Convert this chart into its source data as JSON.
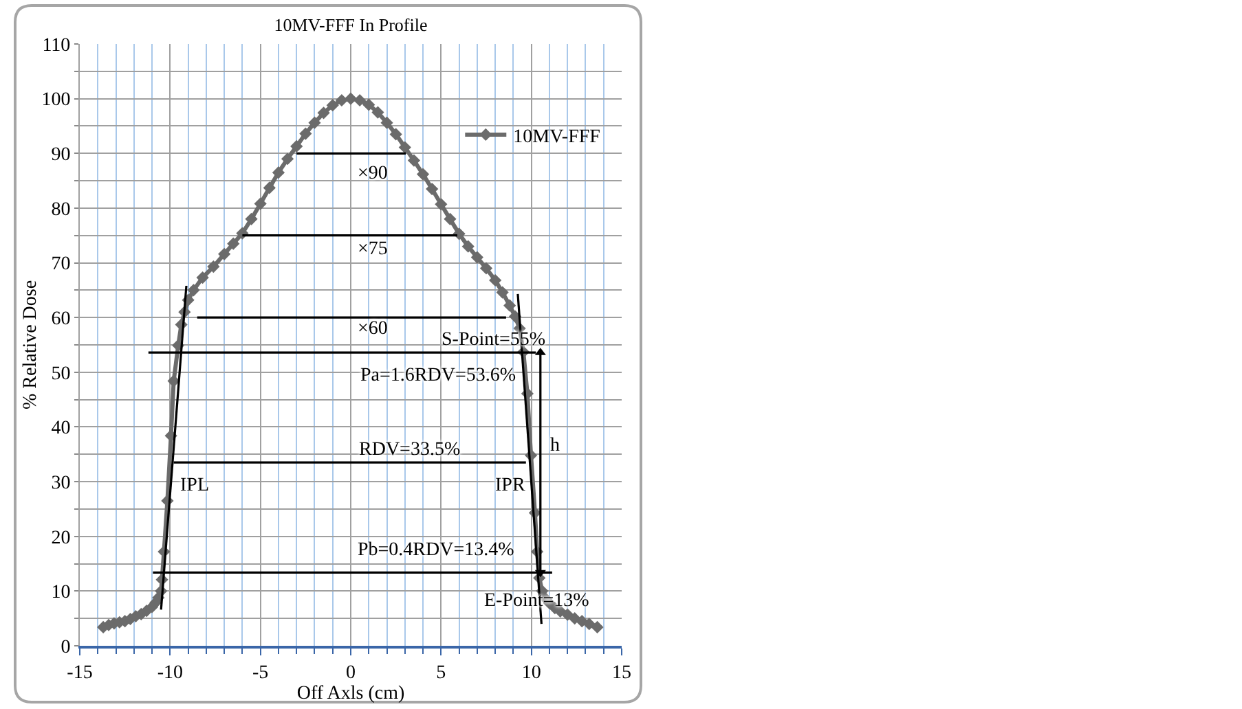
{
  "chart_data": {
    "type": "line",
    "title": "10MV-FFF In Profile",
    "xlabel": "Off Axls (cm)",
    "ylabel": "% Relative Dose",
    "xlim": [
      -15,
      15
    ],
    "xticks": [
      -15,
      {
        "value": -14,
        "label": null
      },
      {
        "value": -13,
        "label": null
      },
      {
        "value": -12,
        "label": null
      },
      {
        "value": -11,
        "label": null
      },
      -10,
      {
        "value": -9,
        "label": null
      },
      {
        "value": -8,
        "label": null
      },
      {
        "value": -7,
        "label": null
      },
      {
        "value": -6,
        "label": null
      },
      -5,
      {
        "value": -4,
        "label": null
      },
      {
        "value": -3,
        "label": null
      },
      {
        "value": -2,
        "label": null
      },
      {
        "value": -1,
        "label": null
      },
      0,
      {
        "value": 1,
        "label": null
      },
      {
        "value": 2,
        "label": null
      },
      {
        "value": 3,
        "label": null
      },
      {
        "value": 4,
        "label": null
      },
      5,
      {
        "value": 6,
        "label": null
      },
      {
        "value": 7,
        "label": null
      },
      {
        "value": 8,
        "label": null
      },
      {
        "value": 9,
        "label": null
      },
      10,
      {
        "value": 11,
        "label": null
      },
      {
        "value": 12,
        "label": null
      },
      {
        "value": 13,
        "label": null
      },
      {
        "value": 14,
        "label": null
      },
      15
    ],
    "ylim": [
      0,
      110
    ],
    "yticks": [
      0,
      {
        "value": 5,
        "label": null
      },
      10,
      {
        "value": 15,
        "label": null
      },
      20,
      {
        "value": 25,
        "label": null
      },
      30,
      {
        "value": 35,
        "label": null
      },
      40,
      {
        "value": 45,
        "label": null
      },
      50,
      {
        "value": 55,
        "label": null
      },
      60,
      {
        "value": 65,
        "label": null
      },
      70,
      {
        "value": 75,
        "label": null
      },
      80,
      {
        "value": 85,
        "label": null
      },
      90,
      {
        "value": 95,
        "label": null
      },
      100,
      {
        "value": 105,
        "label": null
      },
      110
    ],
    "grid": true,
    "legend": "top right",
    "series": [
      {
        "name": "10MV-FFF",
        "color": "#6b6b6b",
        "marker": "diamond",
        "x": [
          -13.7,
          -13.4,
          -13.1,
          -12.8,
          -12.5,
          -12.2,
          -11.9,
          -11.6,
          -11.3,
          -11.0,
          -10.8,
          -10.65,
          -10.5,
          -10.45,
          -10.34,
          -10.15,
          -9.95,
          -9.8,
          -9.55,
          -9.38,
          -9.2,
          -9.0,
          -8.7,
          -8.2,
          -7.6,
          -7.0,
          -6.5,
          -6.0,
          -5.5,
          -5.0,
          -4.5,
          -4.0,
          -3.5,
          -3.0,
          -2.5,
          -2.0,
          -1.5,
          -1.0,
          -0.5,
          0,
          0.5,
          1.0,
          1.5,
          2.0,
          2.5,
          3.0,
          3.5,
          4.0,
          4.5,
          5.0,
          5.5,
          6.0,
          6.5,
          7.0,
          7.5,
          8.0,
          8.4,
          8.8,
          9.1,
          9.35,
          9.56,
          9.78,
          9.98,
          10.2,
          10.32,
          10.44,
          10.6,
          10.8,
          11.0,
          11.3,
          11.6,
          12.0,
          12.4,
          12.8,
          13.2,
          13.65
        ],
        "values": [
          3.4,
          3.8,
          4.1,
          4.3,
          4.5,
          4.9,
          5.4,
          5.8,
          6.4,
          7.1,
          7.9,
          8.8,
          10.0,
          12.1,
          17.2,
          26.5,
          38.4,
          48.4,
          54.9,
          58.7,
          61.0,
          63.2,
          65.0,
          67.3,
          69.3,
          71.6,
          73.5,
          75.4,
          78.0,
          80.8,
          83.7,
          86.5,
          89.0,
          91.3,
          93.6,
          95.6,
          97.4,
          98.8,
          99.7,
          100,
          99.7,
          98.9,
          97.5,
          95.6,
          93.5,
          91.1,
          88.7,
          86.2,
          83.5,
          80.7,
          78.0,
          75.3,
          73.0,
          71.0,
          69.0,
          66.8,
          64.6,
          62.2,
          60.2,
          58.0,
          53.7,
          46.1,
          34.8,
          24.3,
          17.2,
          12.4,
          10.0,
          8.6,
          7.8,
          6.9,
          6.3,
          5.7,
          5.0,
          4.5,
          4.0,
          3.4
        ]
      },
      {
        "type": "line",
        "color": "#000000",
        "x": [
          -3.0,
          3.05
        ],
        "values": [
          90,
          90
        ]
      },
      {
        "type": "line",
        "color": "#000000",
        "x": [
          -6.0,
          5.9
        ],
        "values": [
          75,
          75
        ]
      },
      {
        "type": "line",
        "color": "#000000",
        "x": [
          -8.5,
          8.6
        ],
        "values": [
          60,
          60
        ]
      },
      {
        "type": "line",
        "color": "#000000",
        "x": [
          -11.2,
          10.25
        ],
        "values": [
          53.6,
          53.6
        ]
      },
      {
        "type": "line",
        "color": "#000000",
        "x": [
          -9.8,
          9.7
        ],
        "values": [
          33.5,
          33.5
        ]
      },
      {
        "type": "line",
        "color": "#000000",
        "x": [
          -10.95,
          11.15
        ],
        "values": [
          13.4,
          13.4
        ]
      },
      {
        "type": "line",
        "color": "#000000",
        "x": [
          -9.1,
          -10.5
        ],
        "values": [
          65.8,
          6.6
        ]
      },
      {
        "type": "line",
        "color": "#000000",
        "x": [
          9.25,
          10.56
        ],
        "values": [
          64.3,
          4.0
        ]
      },
      {
        "type": "line",
        "color": "#000000",
        "marker": "triangle",
        "x": [
          10.5,
          10.5
        ],
        "values": [
          13.4,
          53.6
        ]
      }
    ],
    "annotations": [
      "×90",
      "×75",
      "×60",
      "S-Point=55%",
      "Pa=1.6RDV=53.6%",
      "RDV=33.5%",
      "IPL",
      "IPR",
      "Pb=0.4RDV=13.4%",
      "E-Point=13%",
      "h"
    ]
  }
}
